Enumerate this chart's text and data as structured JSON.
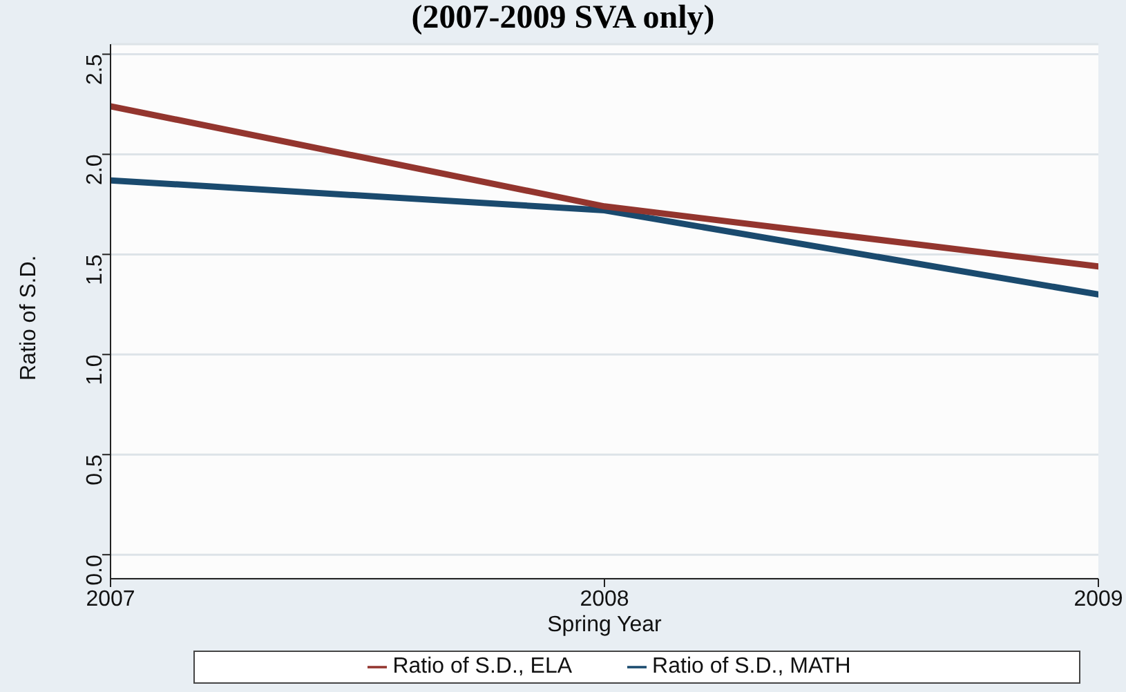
{
  "chart_data": {
    "type": "line",
    "title": "(2007-2009 SVA only)",
    "xlabel": "Spring Year",
    "ylabel": "Ratio of S.D.",
    "x": [
      2007,
      2008,
      2009
    ],
    "series": [
      {
        "name": "Ratio of S.D., MATH",
        "color": "#1a4a6e",
        "values": [
          1.87,
          1.72,
          1.3
        ]
      },
      {
        "name": "Ratio of S.D., ELA",
        "color": "#93352e",
        "values": [
          2.24,
          1.74,
          1.44
        ]
      }
    ],
    "xlim": [
      2007,
      2009
    ],
    "xticks": [
      2007,
      2008,
      2009
    ],
    "ylim": [
      -0.12,
      2.55
    ],
    "yticks": [
      {
        "value": 0,
        "label": "0.0"
      },
      0.5,
      {
        "value": 1,
        "label": "1.0"
      },
      1.5,
      {
        "value": 2,
        "label": "2.0"
      },
      2.5
    ],
    "grid": "y",
    "legend": "bottom",
    "marker": "none",
    "line_style": "solid"
  }
}
